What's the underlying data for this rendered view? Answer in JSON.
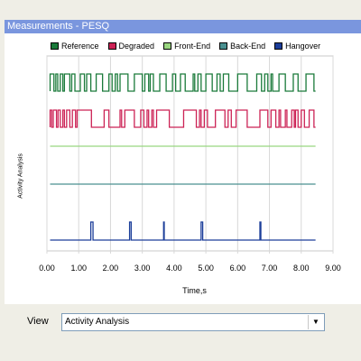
{
  "window": {
    "title": "Measurements - PESQ"
  },
  "legend": [
    {
      "label": "Reference",
      "color": "#1a7a3a"
    },
    {
      "label": "Degraded",
      "color": "#cc2255"
    },
    {
      "label": "Front-End",
      "color": "#99d680"
    },
    {
      "label": "Back-End",
      "color": "#4a9090"
    },
    {
      "label": "Hangover",
      "color": "#1c3e9a"
    }
  ],
  "view": {
    "label": "View",
    "selected": "Activity Analysis",
    "arrow_icon": "chevron-down-icon"
  },
  "chart_data": {
    "type": "line",
    "ylabel": "Activity Analysis",
    "xlabel": "Time,s",
    "xlim": [
      0,
      9
    ],
    "xticks": [
      "0.00",
      "1.00",
      "2.00",
      "3.00",
      "4.00",
      "5.00",
      "6.00",
      "7.00",
      "8.00",
      "9.00"
    ],
    "grid": true,
    "series": [
      {
        "name": "Reference",
        "color": "#1a7a3a",
        "x_end": 8.45,
        "on_intervals": [
          [
            0.1,
            0.22
          ],
          [
            0.28,
            0.34
          ],
          [
            0.42,
            0.5
          ],
          [
            0.55,
            0.72
          ],
          [
            0.78,
            0.88
          ],
          [
            1.05,
            1.18
          ],
          [
            1.25,
            1.38
          ],
          [
            1.55,
            1.75
          ],
          [
            1.95,
            2.05
          ],
          [
            2.15,
            2.22
          ],
          [
            2.3,
            2.55
          ],
          [
            2.75,
            3.0
          ],
          [
            3.08,
            3.2
          ],
          [
            3.25,
            3.35
          ],
          [
            3.55,
            3.75
          ],
          [
            3.95,
            4.05
          ],
          [
            4.2,
            4.35
          ],
          [
            4.6,
            4.65
          ],
          [
            4.75,
            4.85
          ],
          [
            5.0,
            5.2
          ],
          [
            5.35,
            5.45
          ],
          [
            5.55,
            5.72
          ],
          [
            6.0,
            6.3
          ],
          [
            6.6,
            6.75
          ],
          [
            6.85,
            6.95
          ],
          [
            7.05,
            7.1
          ],
          [
            7.3,
            7.5
          ],
          [
            7.75,
            7.9
          ],
          [
            8.15,
            8.4
          ]
        ]
      },
      {
        "name": "Degraded",
        "color": "#cc2255",
        "x_end": 8.45,
        "on_intervals": [
          [
            0.1,
            0.15
          ],
          [
            0.2,
            0.3
          ],
          [
            0.35,
            0.42
          ],
          [
            0.5,
            0.55
          ],
          [
            0.62,
            0.72
          ],
          [
            0.8,
            0.9
          ],
          [
            0.95,
            1.4
          ],
          [
            1.8,
            1.95
          ],
          [
            2.3,
            2.35
          ],
          [
            2.45,
            2.75
          ],
          [
            2.95,
            3.05
          ],
          [
            3.15,
            3.2
          ],
          [
            3.3,
            3.35
          ],
          [
            3.45,
            3.85
          ],
          [
            4.3,
            4.7
          ],
          [
            4.8,
            4.85
          ],
          [
            4.95,
            5.05
          ],
          [
            5.3,
            5.6
          ],
          [
            5.7,
            5.8
          ],
          [
            5.95,
            6.3
          ],
          [
            6.7,
            6.95
          ],
          [
            7.05,
            7.2
          ],
          [
            7.3,
            7.35
          ],
          [
            7.5,
            7.55
          ],
          [
            7.7,
            7.78
          ],
          [
            7.82,
            7.9
          ],
          [
            8.0,
            8.1
          ],
          [
            8.25,
            8.4
          ]
        ]
      },
      {
        "name": "Front-End",
        "color": "#99d680",
        "x_end": 8.45,
        "on_intervals": []
      },
      {
        "name": "Back-End",
        "color": "#4a9090",
        "x_end": 8.45,
        "on_intervals": []
      },
      {
        "name": "Hangover",
        "color": "#1c3e9a",
        "x_end": 8.45,
        "on_intervals": [
          [
            1.38,
            1.45
          ],
          [
            2.6,
            2.65
          ],
          [
            3.67,
            3.69
          ],
          [
            4.85,
            4.9
          ],
          [
            6.7,
            6.73
          ]
        ]
      }
    ]
  }
}
